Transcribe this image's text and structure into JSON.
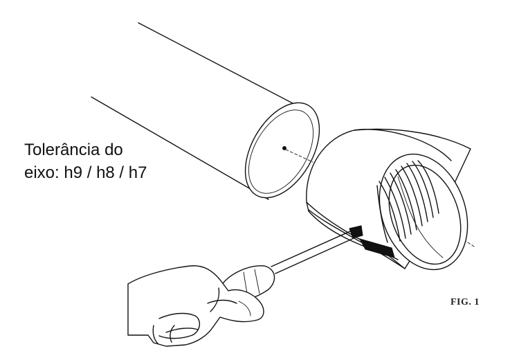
{
  "annotation": {
    "line1": "Tolerância do",
    "line2": "eixo: h9 / h8 / h7"
  },
  "figure_label": "FIG. 1"
}
